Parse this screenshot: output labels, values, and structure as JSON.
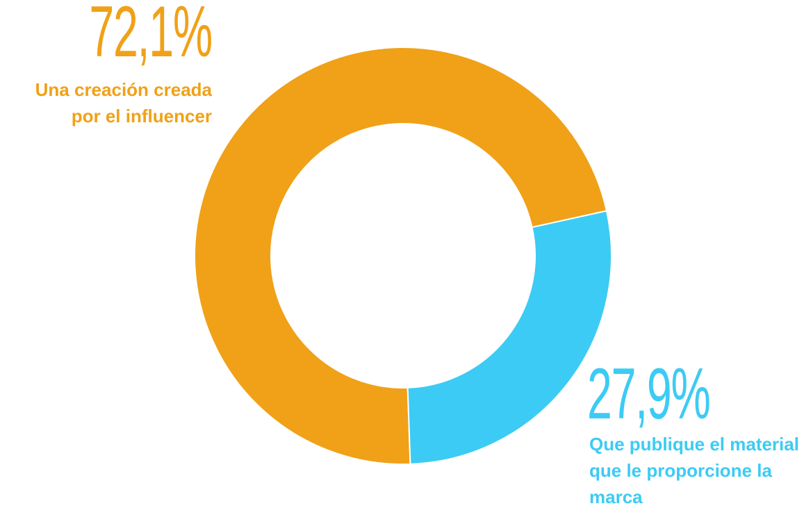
{
  "chart_data": {
    "type": "donut",
    "categories": [
      "Una creación creada por el influencer",
      "Que publique el material que le proporcione la marca"
    ],
    "values": [
      72.1,
      27.9
    ],
    "value_labels": [
      "72,1%",
      "27,9%"
    ],
    "colors": [
      "#f0a118",
      "#3ccbf4"
    ]
  }
}
